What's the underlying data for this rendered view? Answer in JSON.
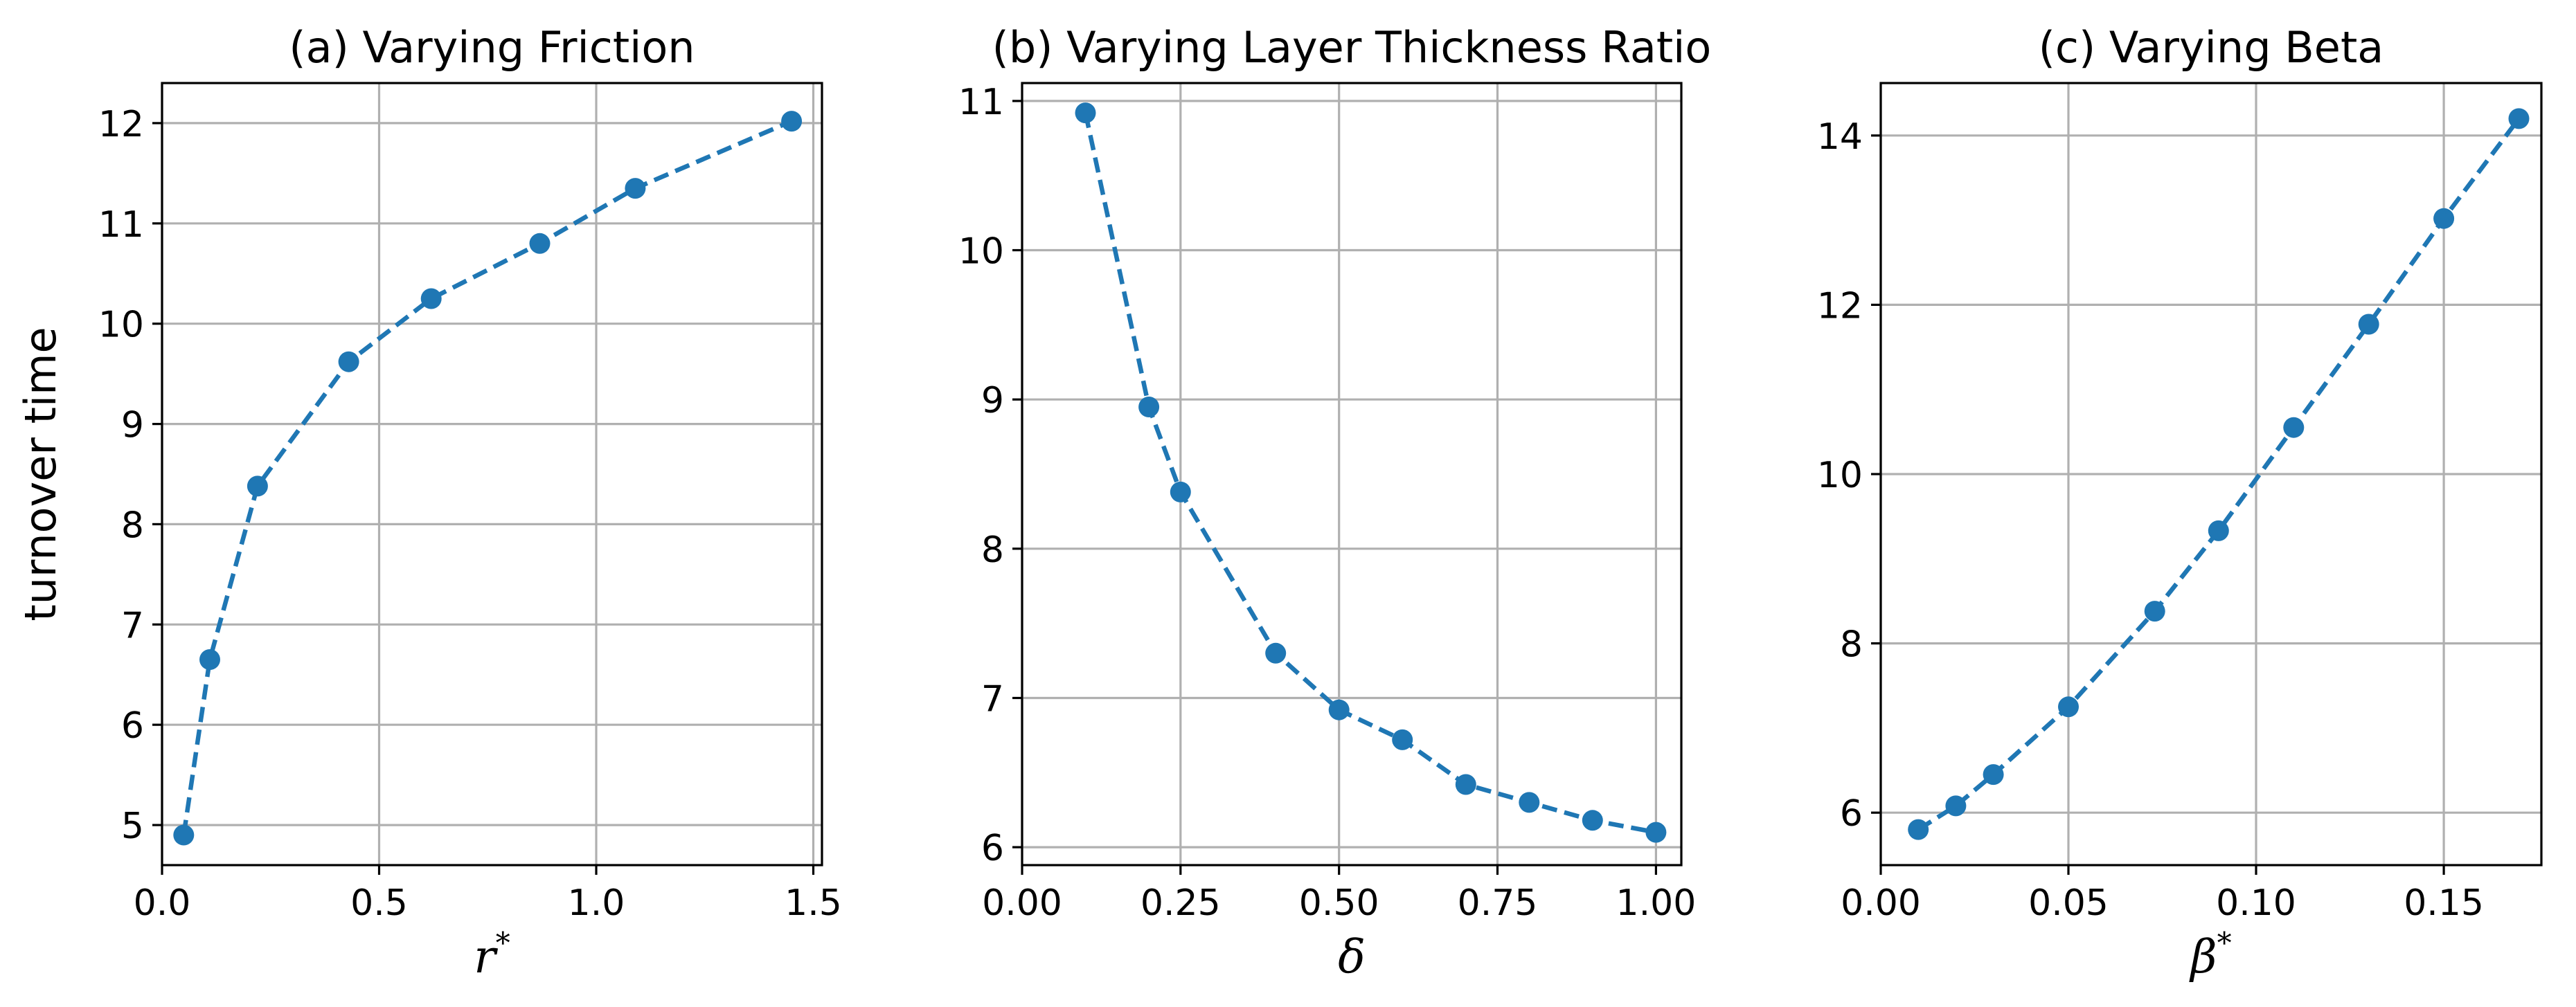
{
  "colors": {
    "series": "#1f77b4",
    "grid": "#b0b0b0",
    "axis": "#000000"
  },
  "chart_data": [
    {
      "type": "line",
      "title": "(a) Varying Friction",
      "xlabel": "r",
      "xlabel_sup": "*",
      "ylabel": "turnover time",
      "xlim": [
        0.0,
        1.52
      ],
      "ylim": [
        4.6,
        12.4
      ],
      "xticks": [
        0.0,
        0.5,
        1.0,
        1.5
      ],
      "xtick_labels": [
        "0.0",
        "0.5",
        "1.0",
        "1.5"
      ],
      "yticks": [
        5,
        6,
        7,
        8,
        9,
        10,
        11,
        12
      ],
      "ytick_labels": [
        "5",
        "6",
        "7",
        "8",
        "9",
        "10",
        "11",
        "12"
      ],
      "grid": true,
      "series": [
        {
          "name": "turnover time",
          "x": [
            0.05,
            0.11,
            0.22,
            0.43,
            0.62,
            0.87,
            1.09,
            1.45
          ],
          "y": [
            4.9,
            6.65,
            8.38,
            9.62,
            10.25,
            10.8,
            11.35,
            12.02
          ]
        }
      ]
    },
    {
      "type": "line",
      "title": "(b) Varying Layer Thickness Ratio",
      "xlabel": "δ",
      "xlabel_sup": "",
      "ylabel": "",
      "xlim": [
        0.0,
        1.04
      ],
      "ylim": [
        5.88,
        11.12
      ],
      "xticks": [
        0.0,
        0.25,
        0.5,
        0.75,
        1.0
      ],
      "xtick_labels": [
        "0.00",
        "0.25",
        "0.50",
        "0.75",
        "1.00"
      ],
      "yticks": [
        6,
        7,
        8,
        9,
        10,
        11
      ],
      "ytick_labels": [
        "6",
        "7",
        "8",
        "9",
        "10",
        "11"
      ],
      "grid": true,
      "series": [
        {
          "name": "turnover time",
          "x": [
            0.1,
            0.2,
            0.25,
            0.4,
            0.5,
            0.6,
            0.7,
            0.8,
            0.9,
            1.0
          ],
          "y": [
            10.92,
            8.95,
            8.38,
            7.3,
            6.92,
            6.72,
            6.42,
            6.3,
            6.18,
            6.1
          ]
        }
      ]
    },
    {
      "type": "line",
      "title": "(c) Varying Beta",
      "xlabel": "β",
      "xlabel_sup": "*",
      "ylabel": "",
      "xlim": [
        0.0,
        0.176
      ],
      "ylim": [
        5.38,
        14.62
      ],
      "xticks": [
        0.0,
        0.05,
        0.1,
        0.15
      ],
      "xtick_labels": [
        "0.00",
        "0.05",
        "0.10",
        "0.15"
      ],
      "yticks": [
        6,
        8,
        10,
        12,
        14
      ],
      "ytick_labels": [
        "6",
        "8",
        "10",
        "12",
        "14"
      ],
      "grid": true,
      "series": [
        {
          "name": "turnover time",
          "x": [
            0.01,
            0.02,
            0.03,
            0.05,
            0.073,
            0.09,
            0.11,
            0.13,
            0.15,
            0.17
          ],
          "y": [
            5.8,
            6.08,
            6.45,
            7.25,
            8.38,
            9.33,
            10.55,
            11.77,
            13.02,
            14.2
          ]
        }
      ]
    }
  ]
}
